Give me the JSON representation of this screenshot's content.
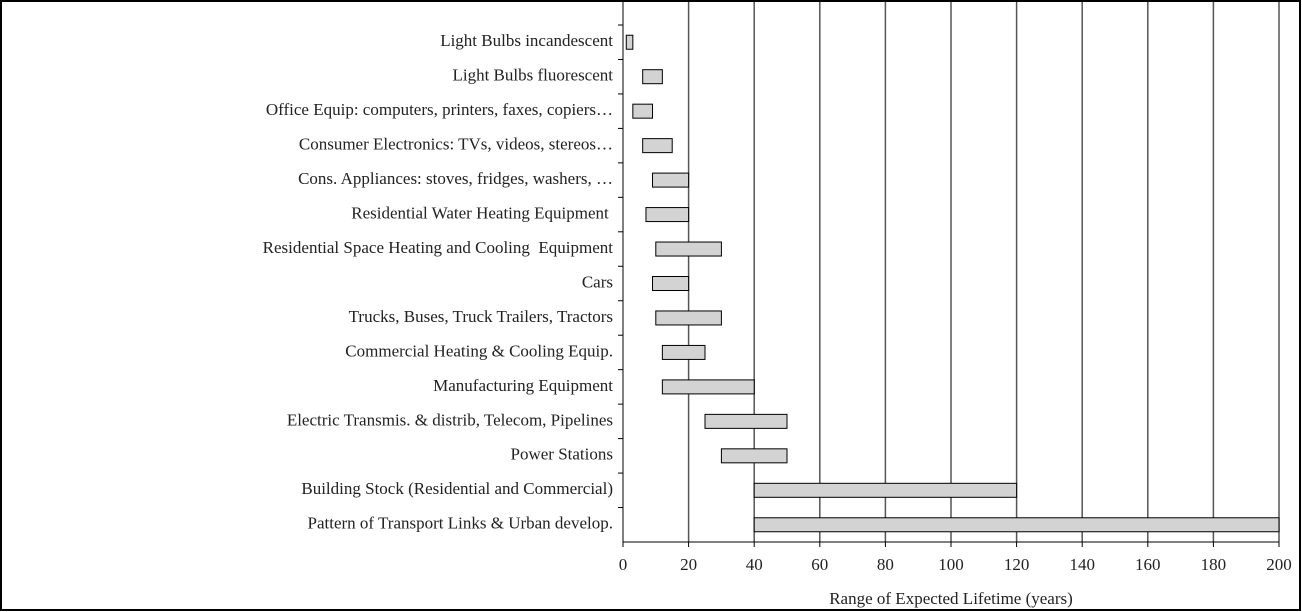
{
  "chart_data": {
    "type": "range_bar",
    "x_label": "Range of Expected Lifetime (years)",
    "categories": [
      "Light Bulbs incandescent",
      "Light Bulbs fluorescent",
      "Office Equip: computers, printers, faxes, copiers…",
      "Consumer Electronics: TVs, videos, stereos…",
      "Cons. Appliances: stoves, fridges, washers, …",
      "Residential Water Heating Equipment ",
      "Residential Space Heating and Cooling  Equipment",
      "Cars",
      "Trucks, Buses, Truck Trailers, Tractors",
      "Commercial Heating & Cooling Equip.",
      "Manufacturing Equipment",
      "Electric Transmis. & distrib, Telecom, Pipelines",
      "Power Stations",
      "Building Stock (Residential and Commercial)",
      "Pattern of Transport Links & Urban develop."
    ],
    "low": [
      1,
      6,
      3,
      6,
      9,
      7,
      10,
      9,
      10,
      12,
      12,
      25,
      30,
      40,
      40
    ],
    "high": [
      3,
      12,
      9,
      15,
      20,
      20,
      30,
      20,
      30,
      25,
      40,
      50,
      50,
      120,
      200
    ],
    "color": "#d3d3d3",
    "xlim": [
      0,
      200
    ],
    "xticks": [
      0,
      20,
      40,
      60,
      80,
      100,
      120,
      140,
      160,
      180,
      200
    ],
    "grid": true
  }
}
